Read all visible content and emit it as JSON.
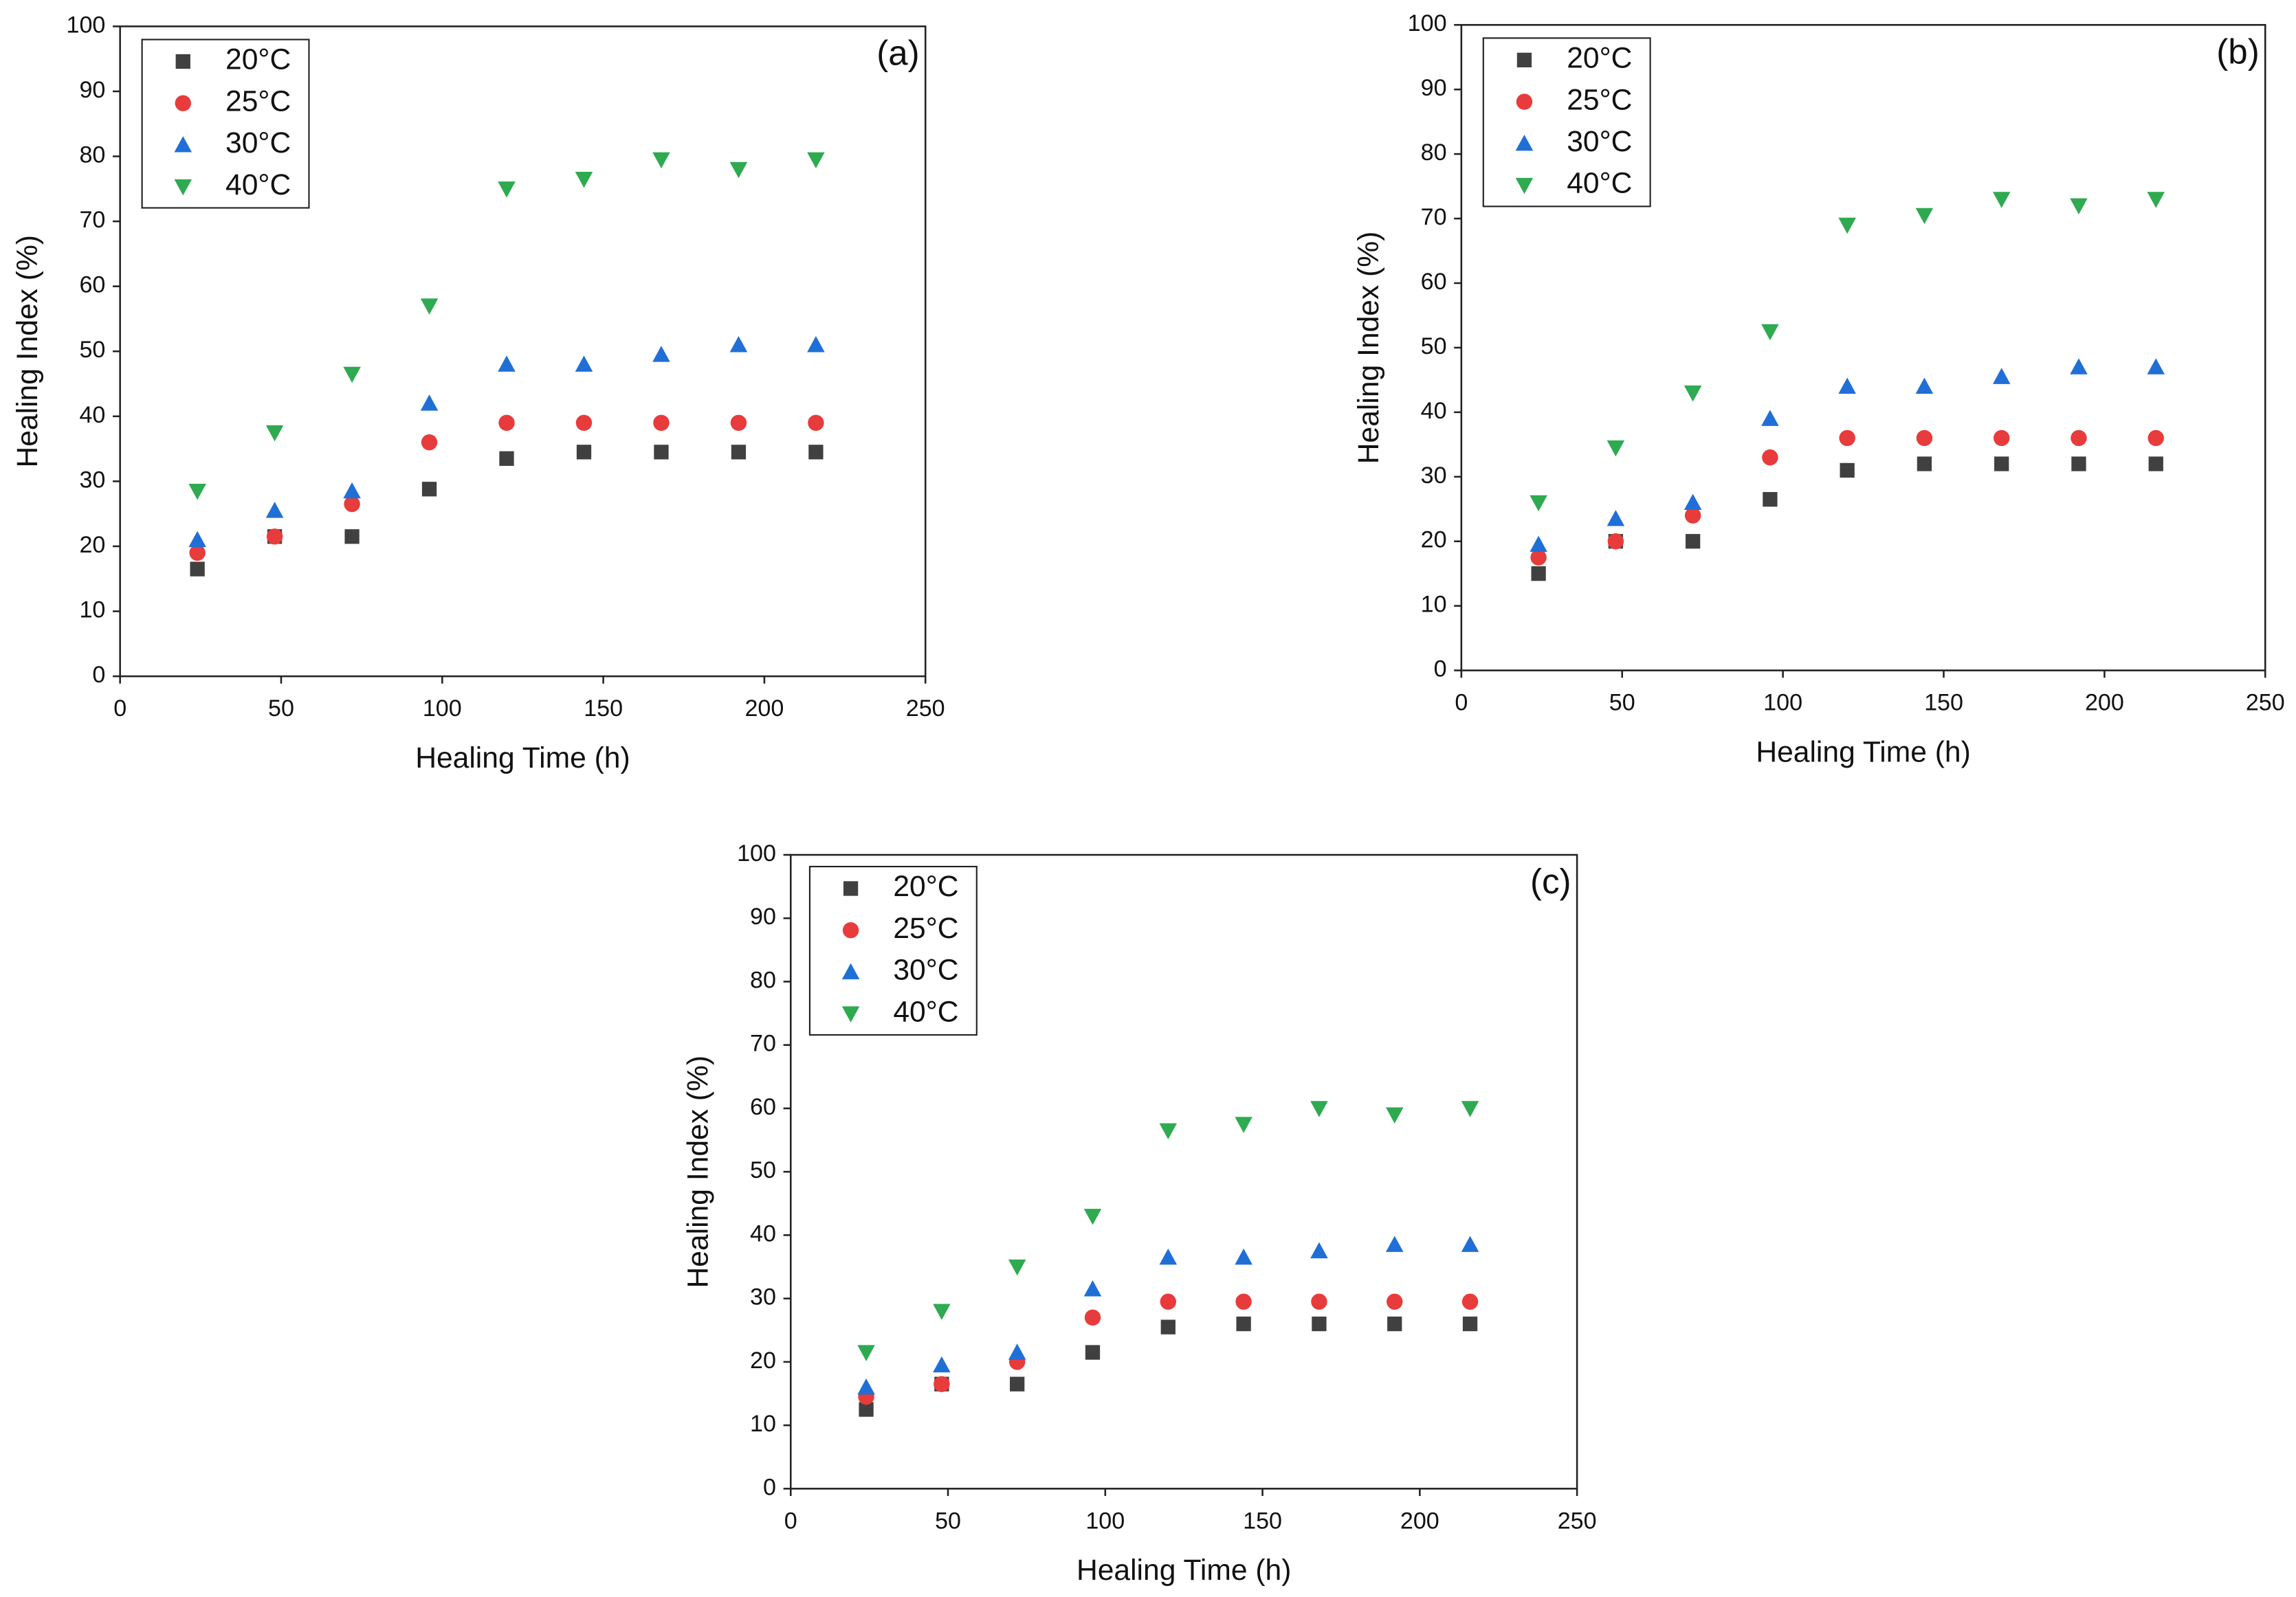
{
  "chart_data": [
    {
      "type": "scatter",
      "panel_label": "(a)",
      "x_label": "Healing Time (h)",
      "y_label": "Healing Index (%)",
      "x": [
        24,
        48,
        72,
        96,
        120,
        144,
        168,
        192,
        216
      ],
      "xlim": [
        0,
        250
      ],
      "ylim": [
        0,
        100
      ],
      "xticks": [
        0,
        50,
        100,
        150,
        200,
        250
      ],
      "yticks": [
        0,
        10,
        20,
        30,
        40,
        50,
        60,
        70,
        80,
        90,
        100
      ],
      "series": [
        {
          "name": "20°C",
          "color": "#404040",
          "marker": "square",
          "values": [
            16.5,
            21.5,
            21.5,
            28.8,
            33.5,
            34.5,
            34.5,
            34.5,
            34.5
          ]
        },
        {
          "name": "25°C",
          "color": "#e83b3b",
          "marker": "circle",
          "values": [
            19,
            21.5,
            26.5,
            36,
            39,
            39,
            39,
            39,
            39
          ]
        },
        {
          "name": "30°C",
          "color": "#1f6fd6",
          "marker": "triangle-up",
          "values": [
            21,
            25.5,
            28.5,
            42,
            48,
            48,
            49.5,
            51,
            51
          ]
        },
        {
          "name": "40°C",
          "color": "#2eaa50",
          "marker": "triangle-down",
          "values": [
            28.5,
            37.5,
            46.5,
            57,
            75,
            76.5,
            79.5,
            78,
            79.5
          ]
        }
      ]
    },
    {
      "type": "scatter",
      "panel_label": "(b)",
      "x_label": "Healing Time (h)",
      "y_label": "Healing Index (%)",
      "x": [
        24,
        48,
        72,
        96,
        120,
        144,
        168,
        192,
        216
      ],
      "xlim": [
        0,
        250
      ],
      "ylim": [
        0,
        100
      ],
      "xticks": [
        0,
        50,
        100,
        150,
        200,
        250
      ],
      "yticks": [
        0,
        10,
        20,
        30,
        40,
        50,
        60,
        70,
        80,
        90,
        100
      ],
      "series": [
        {
          "name": "20°C",
          "color": "#404040",
          "marker": "square",
          "values": [
            15,
            20,
            20,
            26.5,
            31,
            32,
            32,
            32,
            32
          ]
        },
        {
          "name": "25°C",
          "color": "#e83b3b",
          "marker": "circle",
          "values": [
            17.5,
            20,
            24,
            33,
            36,
            36,
            36,
            36,
            36
          ]
        },
        {
          "name": "30°C",
          "color": "#1f6fd6",
          "marker": "triangle-up",
          "values": [
            19.5,
            23.5,
            26,
            39,
            44,
            44,
            45.5,
            47,
            47
          ]
        },
        {
          "name": "40°C",
          "color": "#2eaa50",
          "marker": "triangle-down",
          "values": [
            26,
            34.5,
            43,
            52.5,
            69,
            70.5,
            73,
            72,
            73
          ]
        }
      ]
    },
    {
      "type": "scatter",
      "panel_label": "(c)",
      "x_label": "Healing Time (h)",
      "y_label": "Healing Index (%)",
      "x": [
        24,
        48,
        72,
        96,
        120,
        144,
        168,
        192,
        216
      ],
      "xlim": [
        0,
        250
      ],
      "ylim": [
        0,
        100
      ],
      "xticks": [
        0,
        50,
        100,
        150,
        200,
        250
      ],
      "yticks": [
        0,
        10,
        20,
        30,
        40,
        50,
        60,
        70,
        80,
        90,
        100
      ],
      "series": [
        {
          "name": "20°C",
          "color": "#404040",
          "marker": "square",
          "values": [
            12.5,
            16.5,
            16.5,
            21.5,
            25.5,
            26,
            26,
            26,
            26
          ]
        },
        {
          "name": "25°C",
          "color": "#e83b3b",
          "marker": "circle",
          "values": [
            14.5,
            16.5,
            20,
            27,
            29.5,
            29.5,
            29.5,
            29.5,
            29.5
          ]
        },
        {
          "name": "30°C",
          "color": "#1f6fd6",
          "marker": "triangle-up",
          "values": [
            16,
            19.5,
            21.5,
            31.5,
            36.5,
            36.5,
            37.5,
            38.5,
            38.5
          ]
        },
        {
          "name": "40°C",
          "color": "#2eaa50",
          "marker": "triangle-down",
          "values": [
            21.5,
            28,
            35,
            43,
            56.5,
            57.5,
            60,
            59,
            60
          ]
        }
      ]
    }
  ]
}
